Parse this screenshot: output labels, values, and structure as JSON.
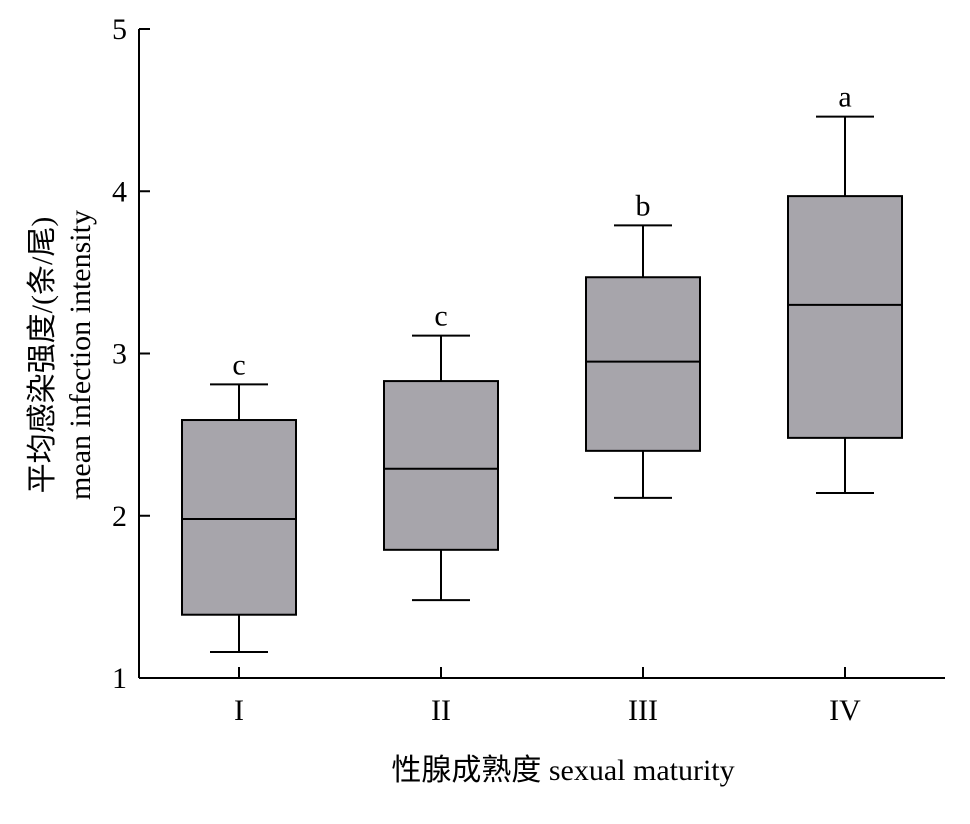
{
  "chart_data": {
    "type": "box",
    "title": "",
    "xlabel": "性腺成熟度 sexual maturity",
    "ylabel_cn": "平均感染强度/(条/尾)",
    "ylabel_en": "mean infection intensity",
    "ylim": [
      1,
      5
    ],
    "yticks": [
      "1",
      "2",
      "3",
      "4",
      "5"
    ],
    "categories": [
      "I",
      "II",
      "III",
      "IV"
    ],
    "boxes": [
      {
        "category": "I",
        "whisker_low": 1.16,
        "q1": 1.39,
        "median": 1.98,
        "q3": 2.59,
        "whisker_high": 2.81,
        "significance": "c"
      },
      {
        "category": "II",
        "whisker_low": 1.48,
        "q1": 1.79,
        "median": 2.29,
        "q3": 2.83,
        "whisker_high": 3.11,
        "significance": "c"
      },
      {
        "category": "III",
        "whisker_low": 2.11,
        "q1": 2.4,
        "median": 2.95,
        "q3": 3.47,
        "whisker_high": 3.79,
        "significance": "b"
      },
      {
        "category": "IV",
        "whisker_low": 2.14,
        "q1": 2.48,
        "median": 3.3,
        "q3": 3.97,
        "whisker_high": 4.46,
        "significance": "a"
      }
    ],
    "grid": false,
    "legend": "none",
    "colors": {
      "box_fill": "#a7a5ab",
      "stroke": "#000000"
    }
  }
}
